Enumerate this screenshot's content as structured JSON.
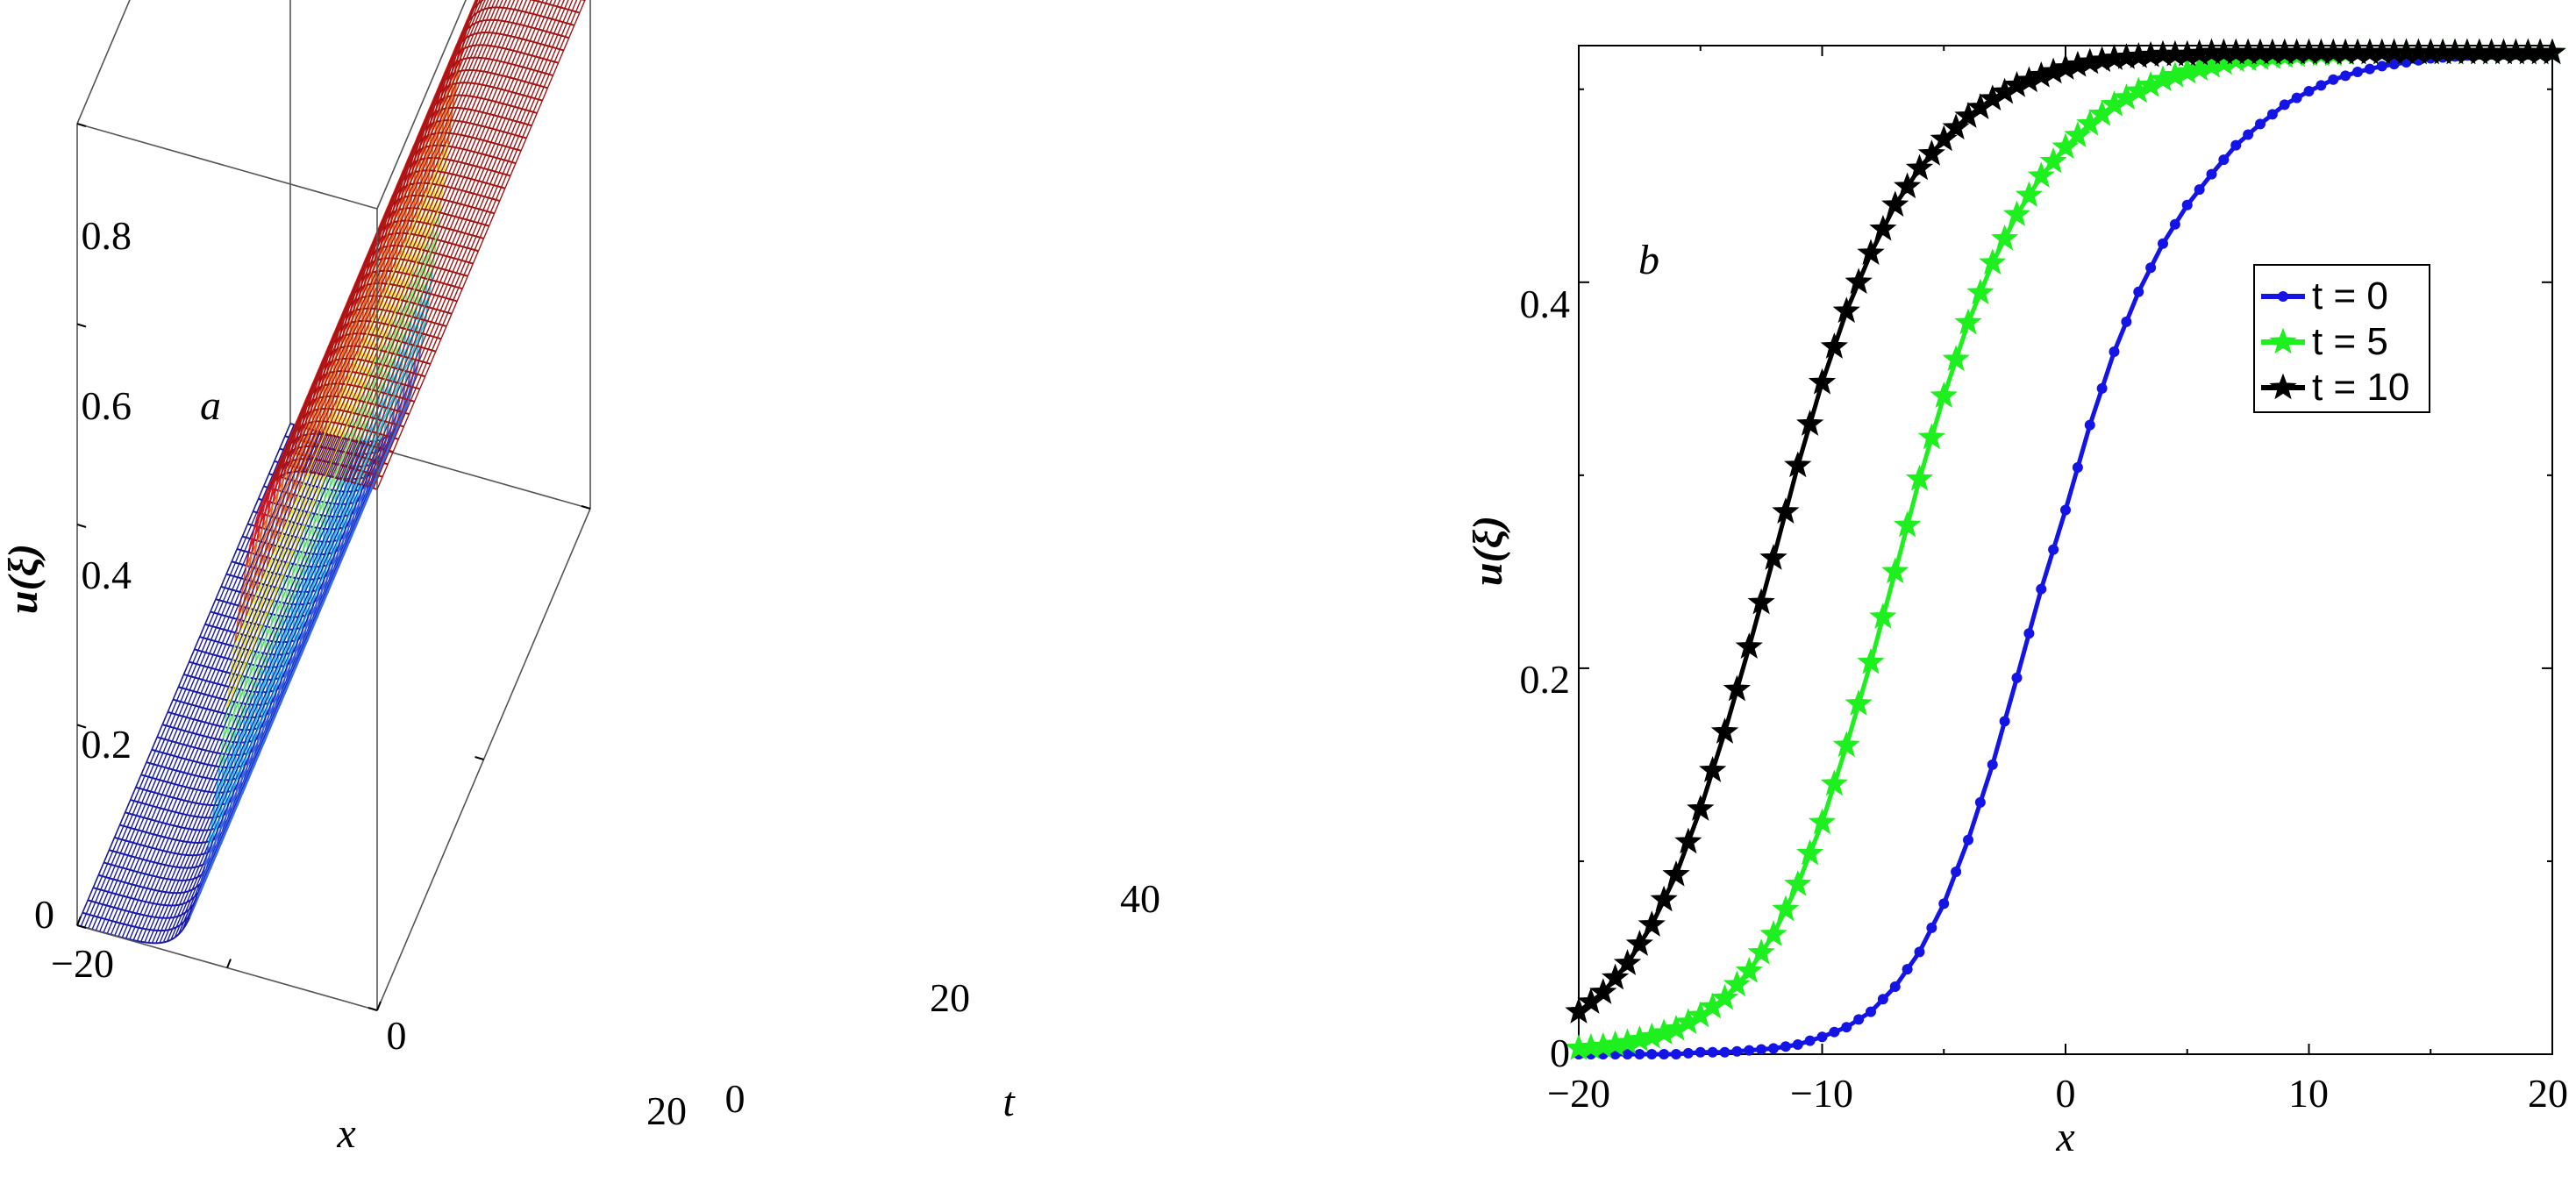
{
  "chart_data": [
    {
      "type": "surface",
      "panel_label": "a",
      "xlabel": "x",
      "ylabel": "u(ξ)",
      "tlabel": "t",
      "xlim": [
        -20,
        20
      ],
      "tlim": [
        0,
        40
      ],
      "zlim": [
        0,
        0.8
      ],
      "x_ticks": [
        "−20",
        "0",
        "20"
      ],
      "t_ticks": [
        "0",
        "20",
        "40"
      ],
      "z_ticks": [
        "0",
        "0.2",
        "0.4",
        "0.6",
        "0.8"
      ],
      "surface_function": {
        "amplitude": 0.52,
        "center_x": 0.0,
        "width": 4.0
      },
      "colormap": [
        "#1a1aa8",
        "#3a6ae8",
        "#26c8e8",
        "#7cf07c",
        "#f0e830",
        "#f06a1a",
        "#e01a1a",
        "#a01515"
      ],
      "grid": false
    },
    {
      "type": "line",
      "panel_label": "b",
      "xlabel": "x",
      "ylabel": "u(ξ)",
      "xlim": [
        -20,
        20
      ],
      "ylim": [
        0,
        0.52
      ],
      "x_ticks": [
        "−20",
        "−10",
        "0",
        "10",
        "20"
      ],
      "y_ticks": [
        "0",
        "0.2",
        "0.4"
      ],
      "grid": false,
      "legend_position": "upper-right",
      "x": [
        -20,
        -19,
        -18,
        -17,
        -16,
        -15,
        -14,
        -13,
        -12,
        -11,
        -10,
        -9,
        -8,
        -7,
        -6,
        -5,
        -4,
        -3,
        -2,
        -1,
        0,
        1,
        2,
        3,
        4,
        5,
        6,
        7,
        8,
        9,
        10,
        11,
        12,
        13,
        14,
        15,
        16,
        17,
        18,
        19,
        20
      ],
      "series": [
        {
          "name": "t = 0",
          "color": "#1414e6",
          "marker": "dot",
          "values": [
            0.0,
            0.0,
            0.0,
            0.0,
            0.0,
            0.001,
            0.001,
            0.002,
            0.003,
            0.005,
            0.009,
            0.014,
            0.022,
            0.035,
            0.053,
            0.078,
            0.111,
            0.15,
            0.195,
            0.241,
            0.282,
            0.326,
            0.364,
            0.395,
            0.42,
            0.44,
            0.456,
            0.471,
            0.482,
            0.492,
            0.499,
            0.505,
            0.509,
            0.512,
            0.514,
            0.516,
            0.517,
            0.518,
            0.518,
            0.518,
            0.519
          ]
        },
        {
          "name": "t = 5",
          "color": "#1eef1e",
          "marker": "star",
          "values": [
            0.003,
            0.004,
            0.006,
            0.009,
            0.013,
            0.02,
            0.029,
            0.043,
            0.062,
            0.088,
            0.12,
            0.16,
            0.203,
            0.25,
            0.298,
            0.341,
            0.379,
            0.41,
            0.435,
            0.455,
            0.47,
            0.482,
            0.492,
            0.499,
            0.505,
            0.509,
            0.512,
            0.515,
            0.516,
            0.517,
            0.518,
            0.518,
            0.519,
            0.519,
            0.519,
            0.519,
            0.519,
            0.519,
            0.519,
            0.519,
            0.519
          ]
        },
        {
          "name": "t = 10",
          "color": "#000000",
          "marker": "star",
          "values": [
            0.022,
            0.032,
            0.047,
            0.067,
            0.093,
            0.127,
            0.167,
            0.211,
            0.257,
            0.305,
            0.348,
            0.385,
            0.415,
            0.44,
            0.459,
            0.474,
            0.486,
            0.495,
            0.502,
            0.507,
            0.511,
            0.514,
            0.516,
            0.517,
            0.518,
            0.518,
            0.519,
            0.519,
            0.519,
            0.519,
            0.519,
            0.519,
            0.519,
            0.519,
            0.519,
            0.519,
            0.519,
            0.519,
            0.519,
            0.519,
            0.519
          ]
        }
      ]
    }
  ]
}
